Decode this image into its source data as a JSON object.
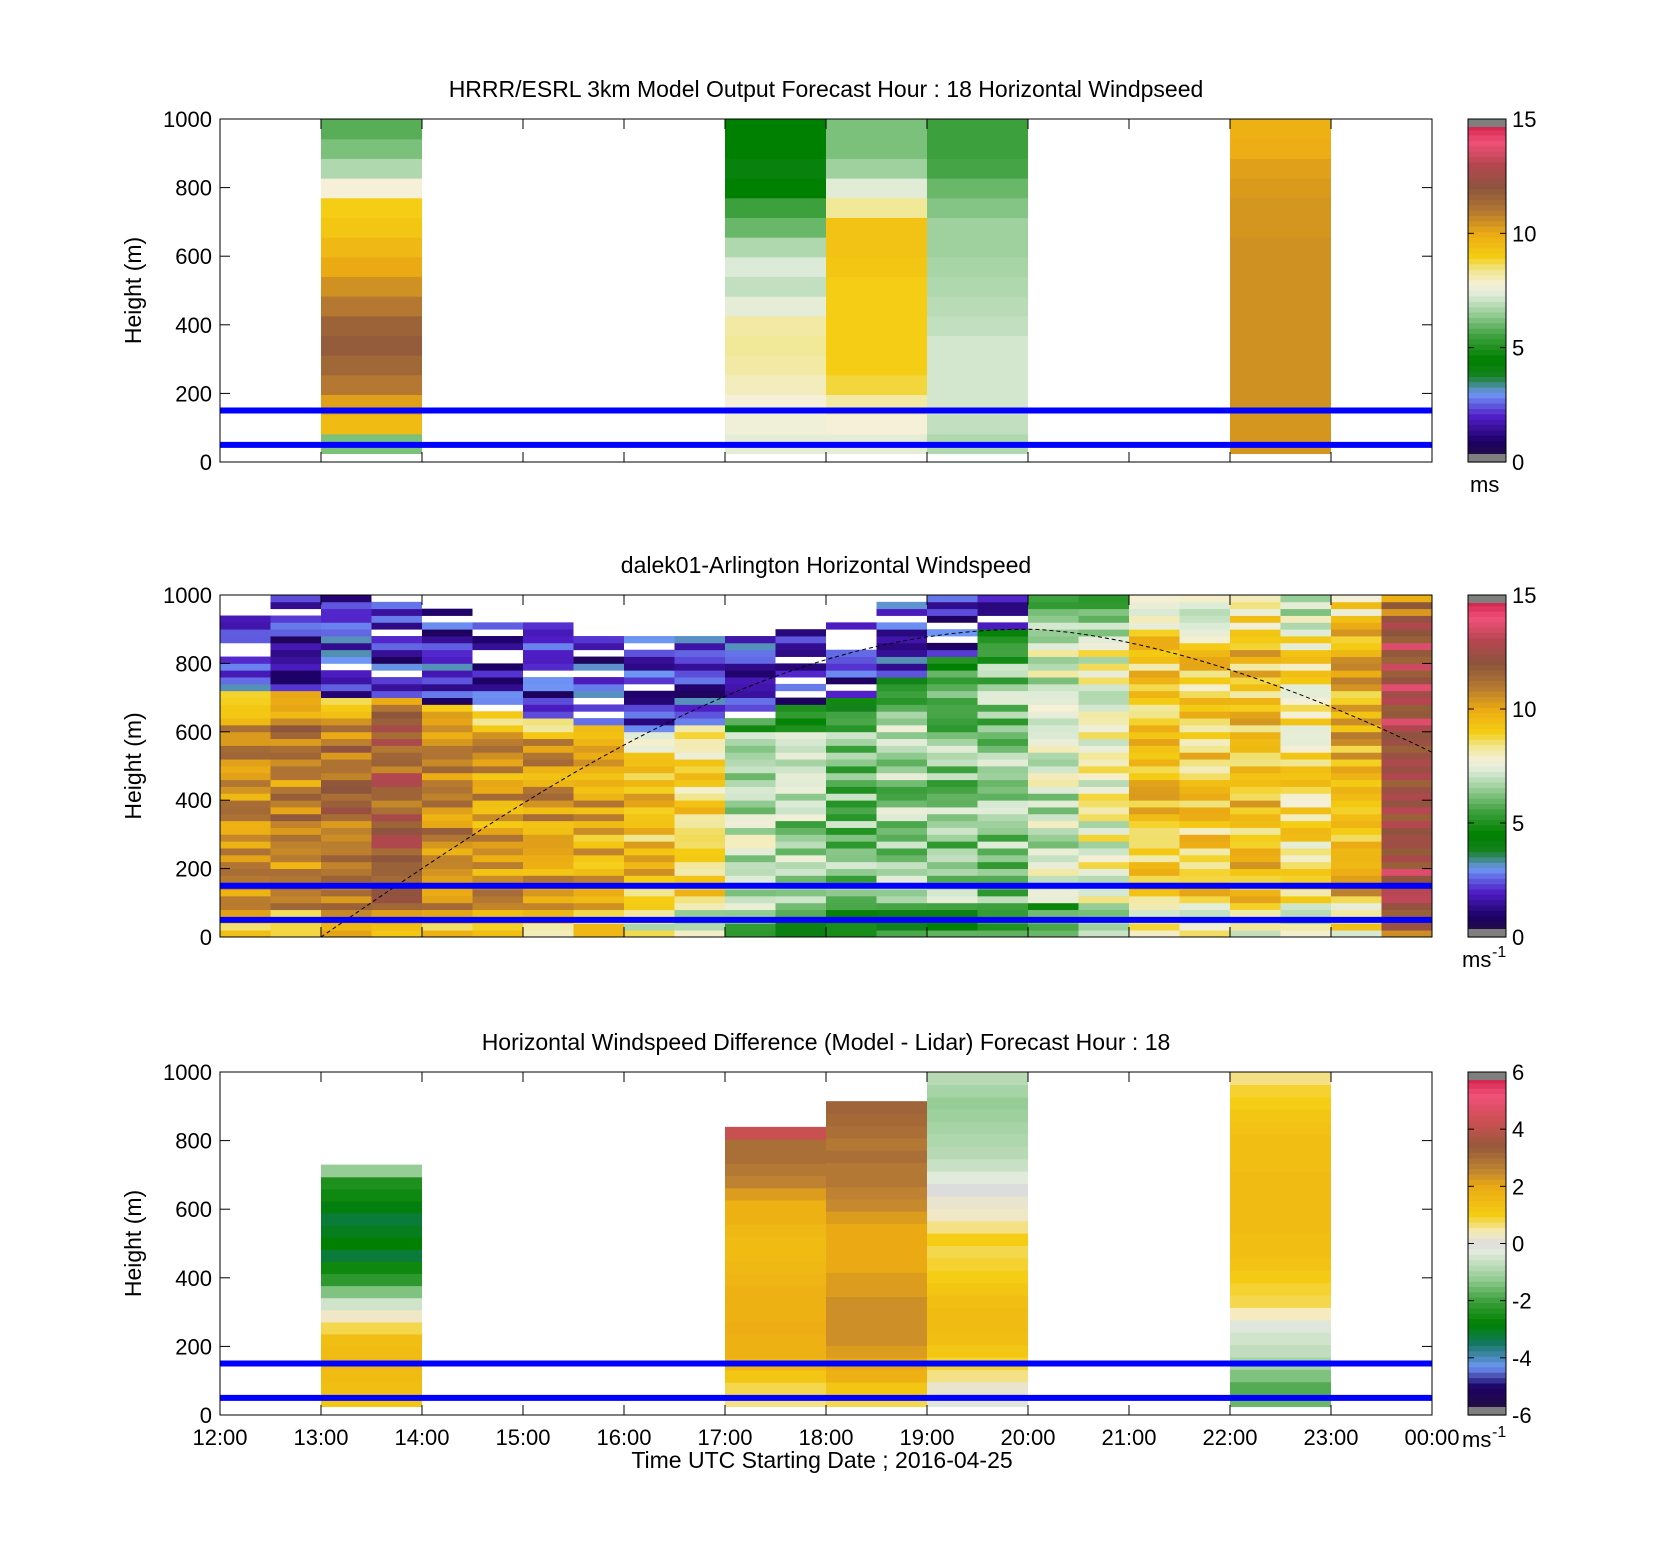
{
  "figure": {
    "xlabel": "Time UTC  Starting Date ; 2016-04-25",
    "xticks": [
      "12:00",
      "13:00",
      "14:00",
      "15:00",
      "16:00",
      "17:00",
      "18:00",
      "19:00",
      "20:00",
      "21:00",
      "22:00",
      "23:00",
      "00:00"
    ]
  },
  "colors": {
    "reference_lines": "#0000ff",
    "axes": "#000000"
  },
  "chart_data": [
    {
      "type": "heatmap",
      "title": "HRRR/ESRL 3km Model Output   Forecast Hour : 18 Horizontal Windpseed",
      "ylabel": "Height (m)",
      "yticks": [
        "0",
        "200",
        "400",
        "600",
        "800",
        "1000"
      ],
      "ylim": [
        0,
        1000
      ],
      "xlim": [
        12,
        24
      ],
      "colorbar": {
        "range": [
          0,
          15
        ],
        "ticks": [
          "0",
          "5",
          "10",
          "15"
        ],
        "unit": "ms",
        "unit_exp": ""
      },
      "reference_lines_m": [
        50,
        150
      ],
      "columns": [
        {
          "start": 13,
          "end": 14,
          "bottom": 25,
          "top": 1000,
          "values": [
            6.2,
            9.5,
            10.2,
            11.0,
            11.5,
            11.8,
            11.6,
            11.0,
            10.5,
            10.0,
            9.6,
            9.2,
            9.0,
            7.8,
            6.8,
            6.2,
            5.8
          ]
        },
        {
          "start": 17,
          "end": 18,
          "bottom": 25,
          "top": 1000,
          "values": [
            7.5,
            7.7,
            7.8,
            8.0,
            8.2,
            8.3,
            8.2,
            7.5,
            7.0,
            7.3,
            6.8,
            6.0,
            5.5,
            4.5,
            4.2,
            4.5,
            4.5
          ]
        },
        {
          "start": 18,
          "end": 19,
          "bottom": 25,
          "top": 1000,
          "values": [
            7.5,
            7.8,
            8.2,
            8.8,
            9.0,
            9.0,
            9.0,
            9.0,
            9.0,
            9.2,
            9.3,
            9.3,
            8.3,
            7.4,
            6.6,
            6.2,
            6.2
          ]
        },
        {
          "start": 19,
          "end": 20,
          "bottom": 25,
          "top": 1000,
          "values": [
            6.8,
            7.0,
            7.2,
            7.2,
            7.2,
            7.2,
            7.0,
            6.9,
            6.8,
            6.7,
            6.6,
            6.6,
            6.3,
            6.0,
            5.6,
            5.5,
            5.5
          ]
        },
        {
          "start": 22,
          "end": 23,
          "bottom": 25,
          "top": 1000,
          "values": [
            10.4,
            10.4,
            10.5,
            10.5,
            10.5,
            10.5,
            10.5,
            10.5,
            10.5,
            10.5,
            10.5,
            10.4,
            10.4,
            10.3,
            10.2,
            9.9,
            9.8
          ]
        }
      ]
    },
    {
      "type": "heatmap",
      "title": "dalek01-Arlington  Horizontal Windspeed",
      "ylabel": "Height (m)",
      "yticks": [
        "0",
        "200",
        "400",
        "600",
        "800",
        "1000"
      ],
      "ylim": [
        0,
        1000
      ],
      "xlim": [
        12,
        24
      ],
      "colorbar": {
        "range": [
          0,
          15
        ],
        "ticks": [
          "0",
          "5",
          "10",
          "15"
        ],
        "unit": "ms",
        "unit_exp": "-1"
      },
      "reference_lines_m": [
        50,
        150
      ],
      "solar_curve": {
        "peak_time": 20,
        "peak_height_m": 900,
        "start_time": 13.0,
        "end_time": 24.0,
        "end_height_m": 540
      },
      "profiles": [
        {
          "t": 12.0,
          "v": 10.5
        },
        {
          "t": 12.5,
          "v": 10.8
        },
        {
          "t": 13.0,
          "v": 11.2
        },
        {
          "t": 13.5,
          "v": 11.8
        },
        {
          "t": 14.0,
          "v": 10.8
        },
        {
          "t": 14.5,
          "v": 10.2
        },
        {
          "t": 15.0,
          "v": 10.4
        },
        {
          "t": 15.5,
          "v": 10.0
        },
        {
          "t": 16.0,
          "v": 9.4
        },
        {
          "t": 16.5,
          "v": 8.8
        },
        {
          "t": 17.0,
          "v": 7.0
        },
        {
          "t": 17.5,
          "v": 6.6
        },
        {
          "t": 18.0,
          "v": 6.2
        },
        {
          "t": 18.5,
          "v": 6.6
        },
        {
          "t": 19.0,
          "v": 6.4
        },
        {
          "t": 19.5,
          "v": 6.3
        },
        {
          "t": 20.0,
          "v": 7.2
        },
        {
          "t": 20.5,
          "v": 7.8
        },
        {
          "t": 21.0,
          "v": 9.2
        },
        {
          "t": 21.5,
          "v": 9.0
        },
        {
          "t": 22.0,
          "v": 9.4
        },
        {
          "t": 22.5,
          "v": 8.6
        },
        {
          "t": 23.0,
          "v": 9.8
        },
        {
          "t": 23.5,
          "v": 12.6
        }
      ],
      "upper_layer_speed": 2.0,
      "pbl_top_m": [
        720,
        720,
        700,
        690,
        680,
        660,
        640,
        620,
        600,
        620,
        640,
        680,
        700,
        760,
        820,
        900,
        1000,
        1000,
        1000,
        1000,
        1000,
        1000,
        1000,
        1000
      ],
      "max_data_height_m": [
        1000,
        1000,
        1000,
        980,
        960,
        940,
        920,
        900,
        880,
        880,
        880,
        900,
        920,
        980,
        1000,
        1000,
        1000,
        1000,
        1000,
        1000,
        1000,
        1000,
        1000,
        1000
      ]
    },
    {
      "type": "heatmap",
      "title": "Horizontal Windspeed Difference (Model - Lidar) Forecast Hour : 18",
      "ylabel": "Height (m)",
      "yticks": [
        "0",
        "200",
        "400",
        "600",
        "800",
        "1000"
      ],
      "ylim": [
        0,
        1000
      ],
      "xlim": [
        12,
        24
      ],
      "colorbar": {
        "range": [
          -6,
          6
        ],
        "ticks": [
          "-6",
          "-4",
          "-2",
          "0",
          "2",
          "4",
          "6"
        ],
        "unit": "ms",
        "unit_exp": "-1"
      },
      "reference_lines_m": [
        50,
        150
      ],
      "columns": [
        {
          "start": 13,
          "end": 14,
          "bottom": 25,
          "top": 730,
          "values": [
            1.2,
            1.4,
            1.5,
            1.6,
            1.5,
            1.4,
            0.8,
            0.3,
            -0.5,
            -1.4,
            -2.2,
            -2.6,
            -3.2,
            -2.8,
            -3.0,
            -3.2,
            -2.9,
            -2.6,
            -2.4,
            -1.2
          ]
        },
        {
          "start": 17,
          "end": 18,
          "bottom": 25,
          "top": 840,
          "values": [
            0.6,
            0.8,
            1.2,
            1.6,
            1.8,
            1.8,
            1.9,
            1.8,
            1.8,
            1.8,
            1.7,
            1.6,
            1.5,
            1.5,
            1.6,
            1.8,
            1.8,
            2.2,
            2.6,
            2.8,
            3.0,
            3.0,
            4.2
          ]
        },
        {
          "start": 18,
          "end": 19,
          "bottom": 25,
          "top": 915,
          "values": [
            0.8,
            1.2,
            1.8,
            2.0,
            2.2,
            2.4,
            2.4,
            2.4,
            2.4,
            2.2,
            2.2,
            2.0,
            2.0,
            2.0,
            2.0,
            2.2,
            2.5,
            2.6,
            2.8,
            2.8,
            3.0,
            2.8,
            3.0,
            3.1,
            3.2
          ]
        },
        {
          "start": 19,
          "end": 20,
          "bottom": 25,
          "top": 1000,
          "values": [
            -0.2,
            0.2,
            0.6,
            0.9,
            1.2,
            1.4,
            1.5,
            1.5,
            1.4,
            1.2,
            1.0,
            0.9,
            0.8,
            1.0,
            0.6,
            0.3,
            0.2,
            0.0,
            -0.3,
            -0.6,
            -0.8,
            -0.9,
            -1.0,
            -1.1,
            -1.2,
            -1.0,
            -0.8
          ]
        },
        {
          "start": 22,
          "end": 23,
          "bottom": 25,
          "top": 1000,
          "values": [
            -1.6,
            -1.8,
            -1.4,
            -1.0,
            -0.7,
            -0.5,
            -0.2,
            0.4,
            0.8,
            0.9,
            1.1,
            1.3,
            1.4,
            1.4,
            1.5,
            1.5,
            1.5,
            1.5,
            1.5,
            1.4,
            1.4,
            1.4,
            1.3,
            1.2,
            1.0,
            0.9,
            0.6
          ]
        }
      ]
    }
  ]
}
